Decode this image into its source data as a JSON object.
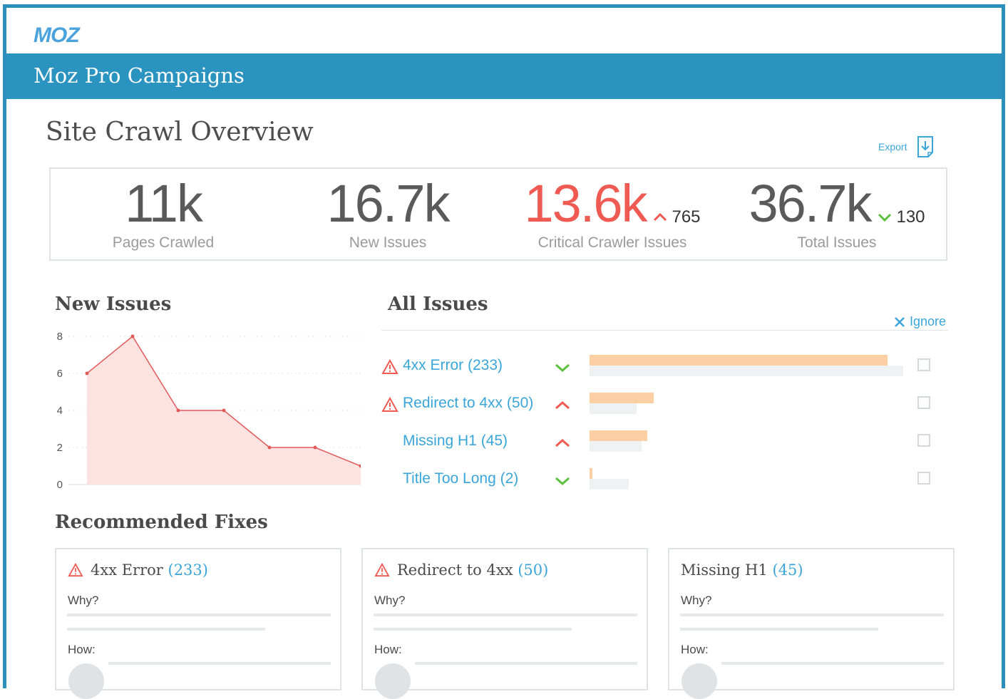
{
  "brand": {
    "logo": "MOZ",
    "color": "#2b93bf",
    "accent": "#3aa5d8",
    "critical": "#ef5a52"
  },
  "header": {
    "title": "Moz Pro Campaigns"
  },
  "page": {
    "title": "Site Crawl Overview",
    "export_label": "Export"
  },
  "stats": [
    {
      "value": "11k",
      "label": "Pages Crawled"
    },
    {
      "value": "16.7k",
      "label": "New Issues"
    },
    {
      "value": "13.6k",
      "label": "Critical Crawler Issues",
      "delta": "765",
      "delta_direction": "up"
    },
    {
      "value": "36.7k",
      "label": "Total Issues",
      "delta": "130",
      "delta_direction": "down"
    }
  ],
  "new_issues": {
    "title": "New Issues",
    "chart_data": {
      "type": "area",
      "x": [
        1,
        2,
        3,
        4,
        5,
        6,
        7
      ],
      "values": [
        6,
        8,
        4,
        4,
        2,
        2,
        1
      ],
      "yticks": [
        "0",
        "2",
        "4",
        "6",
        "8"
      ],
      "ylim": [
        0,
        8
      ],
      "grid": true,
      "color": "#e15a5a",
      "fill": "#fde2e2"
    }
  },
  "all_issues": {
    "title": "All Issues",
    "ignore_label": "Ignore",
    "items": [
      {
        "label": "4xx Error (233)",
        "warning": true,
        "trend": "down",
        "current": 0.95,
        "previous": 1.0
      },
      {
        "label": "Redirect to 4xx (50)",
        "warning": true,
        "trend": "up",
        "current": 0.205,
        "previous": 0.15
      },
      {
        "label": "Missing H1 (45)",
        "warning": false,
        "trend": "up",
        "current": 0.185,
        "previous": 0.165
      },
      {
        "label": "Title Too Long (2)",
        "warning": false,
        "trend": "down",
        "current": 0.008,
        "previous": 0.125
      }
    ]
  },
  "recommended_fixes": {
    "title": "Recommended Fixes",
    "cards": [
      {
        "name": "4xx Error",
        "count": "(233)",
        "warning": true,
        "why": "Why?",
        "how": "How:"
      },
      {
        "name": "Redirect to 4xx",
        "count": "(50)",
        "warning": true,
        "why": "Why?",
        "how": "How:"
      },
      {
        "name": "Missing H1",
        "count": "(45)",
        "warning": false,
        "why": "Why?",
        "how": "How:"
      }
    ]
  }
}
